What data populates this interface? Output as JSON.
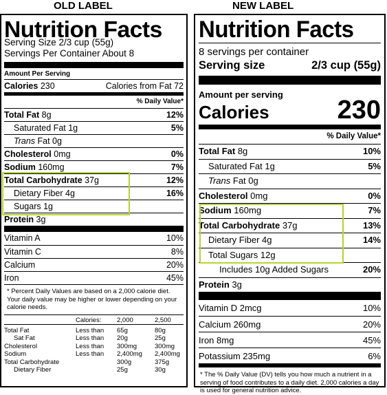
{
  "captions": {
    "old": "OLD LABEL",
    "new": "NEW LABEL"
  },
  "colors": {
    "highlight": "#b5d334",
    "text": "#000000"
  },
  "old_label": {
    "title": "Nutrition Facts",
    "serving_size": "Serving Size 2/3 cup (55g)",
    "servings_per_container": "Servings Per Container About 8",
    "amount_per_serving": "Amount Per Serving",
    "calories_label": "Calories",
    "calories_value": "230",
    "calories_from_fat": "Calories from Fat 72",
    "dv_header": "% Daily Value*",
    "nutrients": [
      {
        "name": "Total Fat",
        "amount": "8g",
        "dv": "12%"
      },
      {
        "name": "Saturated Fat",
        "amount": "1g",
        "dv": "5%"
      },
      {
        "name": "Trans",
        "amount": "Fat 0g",
        "dv": ""
      },
      {
        "name": "Cholesterol",
        "amount": "0mg",
        "dv": "0%"
      },
      {
        "name": "Sodium",
        "amount": "160mg",
        "dv": "7%"
      },
      {
        "name": "Total Carbohydrate",
        "amount": "37g",
        "dv": "12%"
      },
      {
        "name": "Dietary Fiber",
        "amount": "4g",
        "dv": "16%"
      },
      {
        "name": "Sugars",
        "amount": "1g",
        "dv": ""
      },
      {
        "name": "Protein",
        "amount": "3g",
        "dv": ""
      }
    ],
    "vitamins": [
      {
        "name": "Vitamin A",
        "dv": "10%"
      },
      {
        "name": "Vitamin C",
        "dv": "8%"
      },
      {
        "name": "Calcium",
        "dv": "20%"
      },
      {
        "name": "Iron",
        "dv": "45%"
      }
    ],
    "footnote": "* Percent Daily Values are based on a 2,000 calorie diet. Your daily value may be higher or lower depending on your calorie needs.",
    "ref_table": {
      "header": [
        "",
        "Calories:",
        "2,000",
        "2,500"
      ],
      "rows": [
        [
          "Total Fat",
          "Less than",
          "65g",
          "80g"
        ],
        [
          "Sat Fat",
          "Less than",
          "20g",
          "25g"
        ],
        [
          "Cholesterol",
          "Less than",
          "300mg",
          "300mg"
        ],
        [
          "Sodium",
          "Less than",
          "2,400mg",
          "2,400mg"
        ],
        [
          "Total Carbohydrate",
          "",
          "300g",
          "375g"
        ],
        [
          "Dietary Fiber",
          "",
          "25g",
          "30g"
        ]
      ]
    }
  },
  "new_label": {
    "title": "Nutrition Facts",
    "servings_per_container": "8 servings per container",
    "serving_size_label": "Serving size",
    "serving_size_value": "2/3 cup (55g)",
    "amount_per_serving": "Amount per serving",
    "calories_label": "Calories",
    "calories_value": "230",
    "dv_header": "% Daily Value*",
    "nutrients": [
      {
        "name": "Total Fat",
        "amount": "8g",
        "dv": "10%"
      },
      {
        "name": "Saturated Fat",
        "amount": "1g",
        "dv": "5%"
      },
      {
        "name": "Trans",
        "amount": "Fat 0g",
        "dv": ""
      },
      {
        "name": "Cholesterol",
        "amount": "0mg",
        "dv": "0%"
      },
      {
        "name": "Sodium",
        "amount": "160mg",
        "dv": "7%"
      },
      {
        "name": "Total Carbohydrate",
        "amount": "37g",
        "dv": "13%"
      },
      {
        "name": "Dietary Fiber",
        "amount": "4g",
        "dv": "14%"
      },
      {
        "name": "Total Sugars",
        "amount": "12g",
        "dv": ""
      },
      {
        "name": "Includes 10g Added Sugars",
        "amount": "",
        "dv": "20%"
      },
      {
        "name": "Protein",
        "amount": "3g",
        "dv": ""
      }
    ],
    "vitamins": [
      {
        "name": "Vitamin D 2mcg",
        "dv": "10%"
      },
      {
        "name": "Calcium 260mg",
        "dv": "20%"
      },
      {
        "name": "Iron 8mg",
        "dv": "45%"
      },
      {
        "name": "Potassium 235mg",
        "dv": "6%"
      }
    ],
    "footnote": "* The % Daily Value (DV) tells you how much a nutrient in a serving of food contributes to a daily diet. 2,000 calories a day is used for general nutrition advice."
  }
}
